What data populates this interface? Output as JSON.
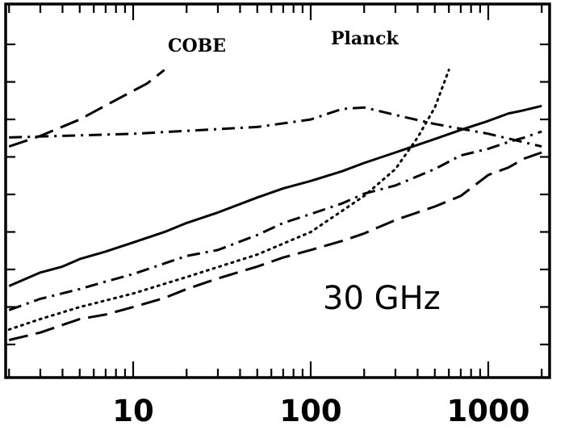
{
  "chart_data": {
    "type": "line",
    "xscale": "log",
    "xlim": [
      2,
      2000
    ],
    "x_ticks": [
      {
        "value": 10,
        "label": "10"
      },
      {
        "value": 100,
        "label": "100"
      },
      {
        "value": 1000,
        "label": "1000"
      }
    ],
    "title": "",
    "xlabel": "",
    "ylabel": "",
    "grid": false,
    "legend": "none",
    "annotations": [
      {
        "text": "COBE",
        "x": 18,
        "ref": "dashed"
      },
      {
        "text": "Planck",
        "x": 150,
        "ref": "dash-dot"
      },
      {
        "text": "30 GHz",
        "x": 200,
        "ref": "panel"
      }
    ],
    "series": [
      {
        "style": "solid",
        "points": [
          [
            2,
            2.22
          ],
          [
            3,
            2.4
          ],
          [
            4,
            2.48
          ],
          [
            5,
            2.58
          ],
          [
            7,
            2.68
          ],
          [
            10,
            2.8
          ],
          [
            15,
            2.94
          ],
          [
            20,
            3.06
          ],
          [
            30,
            3.2
          ],
          [
            50,
            3.4
          ],
          [
            70,
            3.52
          ],
          [
            100,
            3.62
          ],
          [
            150,
            3.75
          ],
          [
            200,
            3.86
          ],
          [
            300,
            4.0
          ],
          [
            500,
            4.18
          ],
          [
            700,
            4.3
          ],
          [
            1000,
            4.42
          ],
          [
            1300,
            4.52
          ],
          [
            1500,
            4.55
          ],
          [
            2000,
            4.62
          ]
        ]
      },
      {
        "style": "dash-dot",
        "points": [
          [
            2,
            1.9
          ],
          [
            3,
            2.05
          ],
          [
            5,
            2.18
          ],
          [
            7,
            2.28
          ],
          [
            10,
            2.38
          ],
          [
            15,
            2.52
          ],
          [
            20,
            2.62
          ],
          [
            30,
            2.7
          ],
          [
            50,
            2.9
          ],
          [
            70,
            3.06
          ],
          [
            100,
            3.18
          ],
          [
            150,
            3.32
          ],
          [
            200,
            3.45
          ],
          [
            300,
            3.56
          ],
          [
            500,
            3.78
          ],
          [
            700,
            3.96
          ],
          [
            1000,
            4.05
          ],
          [
            1300,
            4.14
          ],
          [
            1600,
            4.2
          ],
          [
            2000,
            4.28
          ]
        ]
      },
      {
        "style": "dashed",
        "points": [
          [
            2,
            1.5
          ],
          [
            3,
            1.6
          ],
          [
            5,
            1.78
          ],
          [
            7,
            1.84
          ],
          [
            10,
            1.94
          ],
          [
            15,
            2.06
          ],
          [
            20,
            2.18
          ],
          [
            30,
            2.32
          ],
          [
            50,
            2.48
          ],
          [
            70,
            2.6
          ],
          [
            100,
            2.7
          ],
          [
            150,
            2.82
          ],
          [
            200,
            2.92
          ],
          [
            300,
            3.1
          ],
          [
            500,
            3.28
          ],
          [
            700,
            3.42
          ],
          [
            1000,
            3.7
          ],
          [
            1300,
            3.8
          ],
          [
            1600,
            3.92
          ],
          [
            2000,
            4.0
          ]
        ]
      },
      {
        "style": "dotted",
        "points": [
          [
            2,
            1.64
          ],
          [
            3,
            1.78
          ],
          [
            5,
            1.94
          ],
          [
            10,
            2.12
          ],
          [
            20,
            2.34
          ],
          [
            50,
            2.64
          ],
          [
            100,
            2.94
          ],
          [
            150,
            3.22
          ],
          [
            200,
            3.42
          ],
          [
            300,
            3.78
          ],
          [
            400,
            4.2
          ],
          [
            500,
            4.6
          ],
          [
            600,
            5.1
          ]
        ]
      },
      {
        "style": "dashed-upper",
        "points": [
          [
            2,
            4.08
          ],
          [
            3,
            4.22
          ],
          [
            5,
            4.44
          ],
          [
            8,
            4.7
          ],
          [
            12,
            4.92
          ],
          [
            15,
            5.1
          ]
        ]
      },
      {
        "style": "dash-dot-upper",
        "points": [
          [
            2,
            4.2
          ],
          [
            10,
            4.25
          ],
          [
            50,
            4.34
          ],
          [
            100,
            4.44
          ],
          [
            150,
            4.58
          ],
          [
            200,
            4.6
          ],
          [
            300,
            4.5
          ],
          [
            500,
            4.38
          ],
          [
            1000,
            4.25
          ],
          [
            2000,
            4.08
          ]
        ]
      }
    ]
  }
}
